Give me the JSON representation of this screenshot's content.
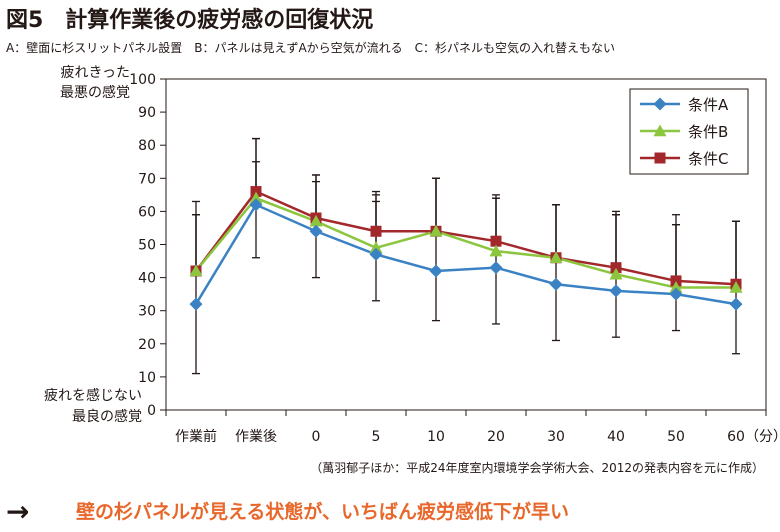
{
  "figure": {
    "title": "図5　計算作業後の疲労感の回復状況",
    "conditions_note": "A：壁面に杉スリットパネル設置　B：パネルは見えずAから空気が流れる　C：杉パネルも空気の入れ替えもない",
    "source": "（萬羽郁子ほか：平成24年度室内環境学会学術大会、2012の発表内容を元に作成）",
    "conclusion_arrow": "→",
    "conclusion": "壁の杉パネルが見える状態が、いちばん疲労感低下が早い"
  },
  "chart_data": {
    "type": "line",
    "categories": [
      "作業前",
      "作業後",
      "0",
      "5",
      "10",
      "20",
      "30",
      "40",
      "50",
      "60"
    ],
    "x_unit": "（分）",
    "y_top_label": [
      "疲れきった",
      "最悪の感覚"
    ],
    "y_bottom_label": [
      "疲れを感じない",
      "最良の感覚"
    ],
    "ylim": [
      0,
      100
    ],
    "yticks": [
      0,
      10,
      20,
      30,
      40,
      50,
      60,
      70,
      80,
      90,
      100
    ],
    "grid": false,
    "legend_position": "top-right",
    "series": [
      {
        "name": "条件A",
        "color": "#3b82c4",
        "marker": "diamond",
        "values": [
          32,
          62,
          54,
          47,
          42,
          43,
          38,
          36,
          35,
          32
        ],
        "error_plus": [
          27,
          20,
          17,
          19,
          28,
          21,
          24,
          23,
          21,
          25
        ],
        "error_minus": [
          21,
          16,
          14,
          14,
          15,
          17,
          17,
          14,
          11,
          15
        ]
      },
      {
        "name": "条件B",
        "color": "#8cc63f",
        "marker": "triangle",
        "values": [
          42,
          64,
          57,
          49,
          54,
          48,
          46,
          41,
          37,
          37
        ],
        "error_plus": [
          17,
          11,
          12,
          14,
          16,
          16,
          16,
          18,
          19,
          20
        ],
        "error_minus": [
          0,
          0,
          0,
          0,
          0,
          0,
          0,
          0,
          0,
          0
        ]
      },
      {
        "name": "条件C",
        "color": "#a2282c",
        "marker": "square",
        "values": [
          42,
          66,
          58,
          54,
          54,
          51,
          46,
          43,
          39,
          38
        ],
        "error_plus": [
          21,
          16,
          13,
          11,
          16,
          14,
          16,
          17,
          20,
          19
        ],
        "error_minus": [
          0,
          0,
          0,
          0,
          0,
          0,
          0,
          0,
          0,
          0
        ]
      }
    ]
  },
  "colors": {
    "text": "#231815",
    "conclusion": "#e8682c",
    "axis": "#231815",
    "error_bar": "#231815"
  }
}
